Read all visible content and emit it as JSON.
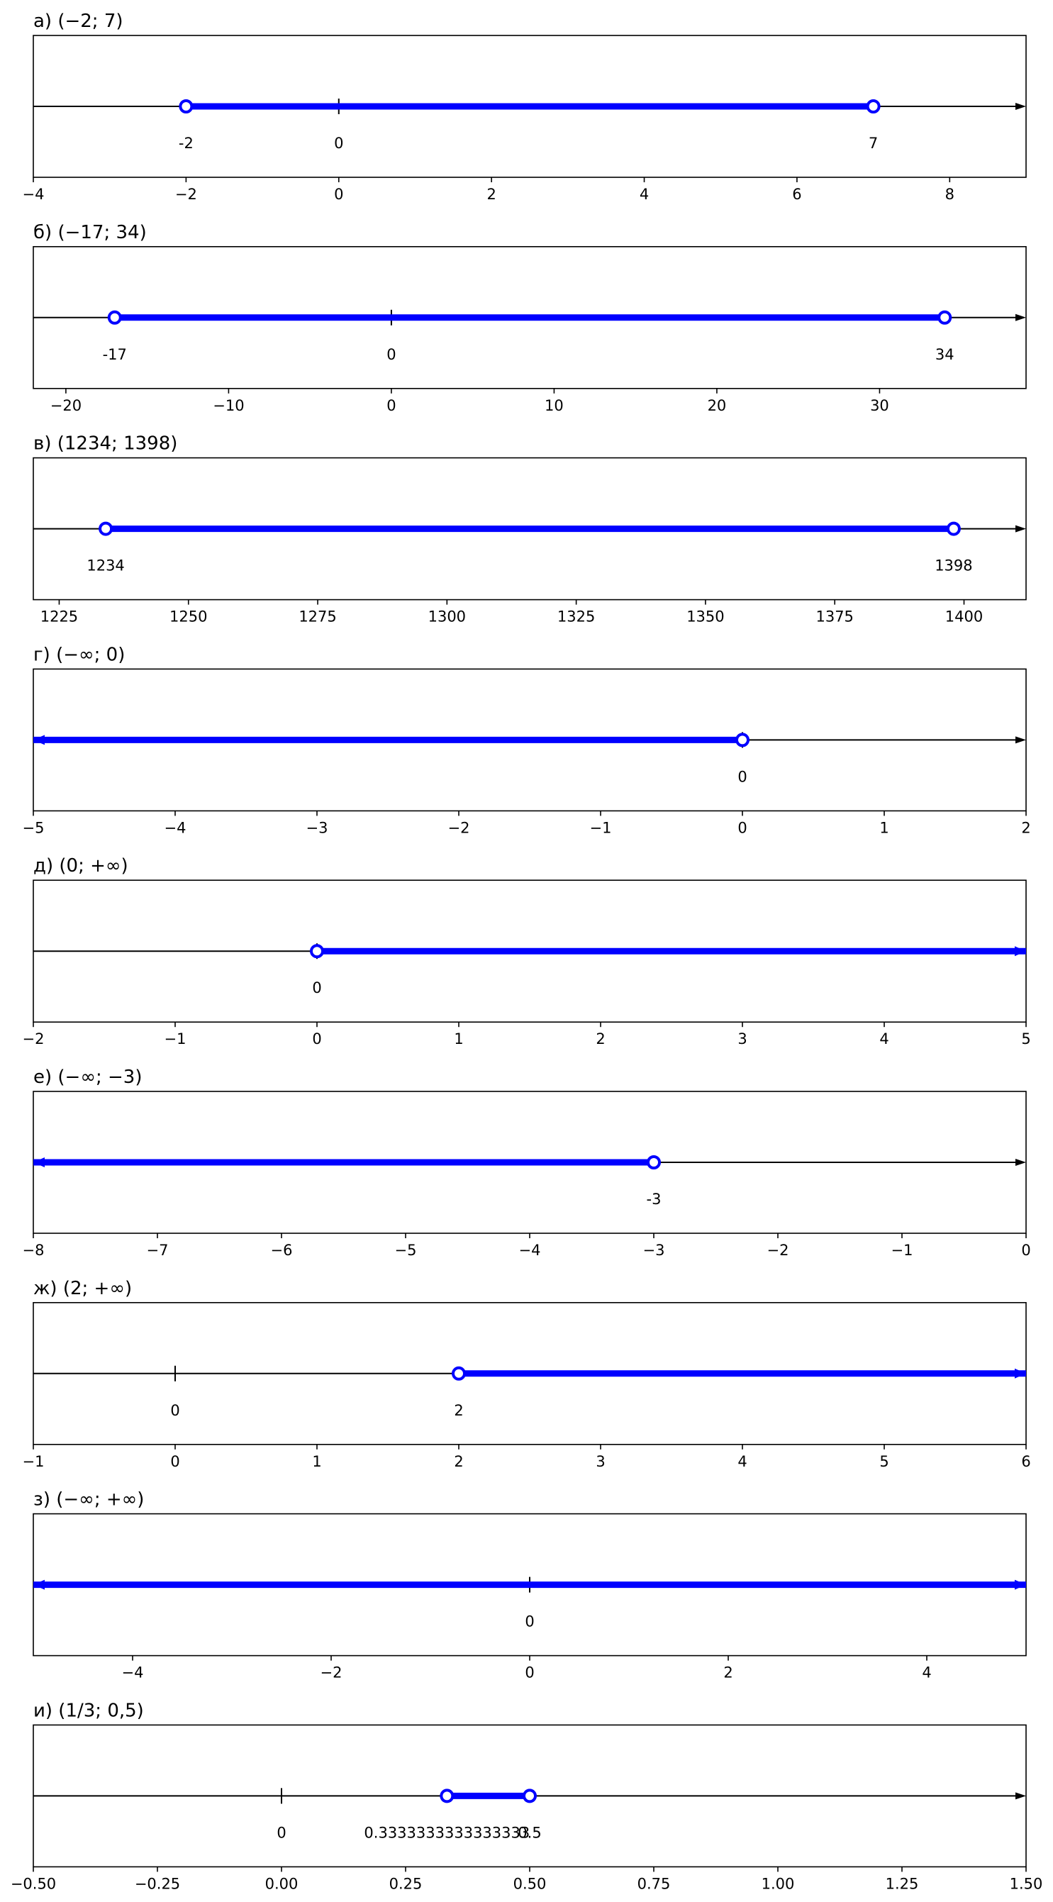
{
  "chart_data": [
    {
      "type": "number-line",
      "title": "а) (−2; 7)",
      "xlim": [
        -4,
        9
      ],
      "xticks": [
        {
          "v": -4,
          "label": "−4"
        },
        {
          "v": -2,
          "label": "−2"
        },
        {
          "v": 0,
          "label": "0"
        },
        {
          "v": 2,
          "label": "2"
        },
        {
          "v": 4,
          "label": "4"
        },
        {
          "v": 6,
          "label": "6"
        },
        {
          "v": 8,
          "label": "8"
        }
      ],
      "interval": {
        "from": -2,
        "to": 7,
        "from_inf": false,
        "to_inf": false
      },
      "point_labels": [
        {
          "v": -2,
          "label": "-2"
        },
        {
          "v": 0,
          "label": "0"
        },
        {
          "v": 7,
          "label": "7"
        }
      ],
      "zero_mark": true
    },
    {
      "type": "number-line",
      "title": "б) (−17; 34)",
      "xlim": [
        -22,
        39
      ],
      "xticks": [
        {
          "v": -20,
          "label": "−20"
        },
        {
          "v": -10,
          "label": "−10"
        },
        {
          "v": 0,
          "label": "0"
        },
        {
          "v": 10,
          "label": "10"
        },
        {
          "v": 20,
          "label": "20"
        },
        {
          "v": 30,
          "label": "30"
        }
      ],
      "interval": {
        "from": -17,
        "to": 34,
        "from_inf": false,
        "to_inf": false
      },
      "point_labels": [
        {
          "v": -17,
          "label": "-17"
        },
        {
          "v": 0,
          "label": "0"
        },
        {
          "v": 34,
          "label": "34"
        }
      ],
      "zero_mark": true
    },
    {
      "type": "number-line",
      "title": "в) (1234; 1398)",
      "xlim": [
        1220,
        1412
      ],
      "xticks": [
        {
          "v": 1225,
          "label": "1225"
        },
        {
          "v": 1250,
          "label": "1250"
        },
        {
          "v": 1275,
          "label": "1275"
        },
        {
          "v": 1300,
          "label": "1300"
        },
        {
          "v": 1325,
          "label": "1325"
        },
        {
          "v": 1350,
          "label": "1350"
        },
        {
          "v": 1375,
          "label": "1375"
        },
        {
          "v": 1400,
          "label": "1400"
        }
      ],
      "interval": {
        "from": 1234,
        "to": 1398,
        "from_inf": false,
        "to_inf": false
      },
      "point_labels": [
        {
          "v": 1234,
          "label": "1234"
        },
        {
          "v": 1398,
          "label": "1398"
        }
      ],
      "zero_mark": false
    },
    {
      "type": "number-line",
      "title": "г) (−∞; 0)",
      "xlim": [
        -5,
        2
      ],
      "xticks": [
        {
          "v": -5,
          "label": "−5"
        },
        {
          "v": -4,
          "label": "−4"
        },
        {
          "v": -3,
          "label": "−3"
        },
        {
          "v": -2,
          "label": "−2"
        },
        {
          "v": -1,
          "label": "−1"
        },
        {
          "v": 0,
          "label": "0"
        },
        {
          "v": 1,
          "label": "1"
        },
        {
          "v": 2,
          "label": "2"
        }
      ],
      "interval": {
        "from": null,
        "to": 0,
        "from_inf": true,
        "to_inf": false
      },
      "point_labels": [
        {
          "v": 0,
          "label": "0"
        }
      ],
      "zero_mark": true
    },
    {
      "type": "number-line",
      "title": "д) (0; +∞)",
      "xlim": [
        -2,
        5
      ],
      "xticks": [
        {
          "v": -2,
          "label": "−2"
        },
        {
          "v": -1,
          "label": "−1"
        },
        {
          "v": 0,
          "label": "0"
        },
        {
          "v": 1,
          "label": "1"
        },
        {
          "v": 2,
          "label": "2"
        },
        {
          "v": 3,
          "label": "3"
        },
        {
          "v": 4,
          "label": "4"
        },
        {
          "v": 5,
          "label": "5"
        }
      ],
      "interval": {
        "from": 0,
        "to": null,
        "from_inf": false,
        "to_inf": true
      },
      "point_labels": [
        {
          "v": 0,
          "label": "0"
        }
      ],
      "zero_mark": true
    },
    {
      "type": "number-line",
      "title": "е) (−∞; −3)",
      "xlim": [
        -8,
        0
      ],
      "xticks": [
        {
          "v": -8,
          "label": "−8"
        },
        {
          "v": -7,
          "label": "−7"
        },
        {
          "v": -6,
          "label": "−6"
        },
        {
          "v": -5,
          "label": "−5"
        },
        {
          "v": -4,
          "label": "−4"
        },
        {
          "v": -3,
          "label": "−3"
        },
        {
          "v": -2,
          "label": "−2"
        },
        {
          "v": -1,
          "label": "−1"
        },
        {
          "v": 0,
          "label": "0"
        }
      ],
      "interval": {
        "from": null,
        "to": -3,
        "from_inf": true,
        "to_inf": false
      },
      "point_labels": [
        {
          "v": -3,
          "label": "-3"
        }
      ],
      "zero_mark": false
    },
    {
      "type": "number-line",
      "title": "ж) (2; +∞)",
      "xlim": [
        -1,
        6
      ],
      "xticks": [
        {
          "v": -1,
          "label": "−1"
        },
        {
          "v": 0,
          "label": "0"
        },
        {
          "v": 1,
          "label": "1"
        },
        {
          "v": 2,
          "label": "2"
        },
        {
          "v": 3,
          "label": "3"
        },
        {
          "v": 4,
          "label": "4"
        },
        {
          "v": 5,
          "label": "5"
        },
        {
          "v": 6,
          "label": "6"
        }
      ],
      "interval": {
        "from": 2,
        "to": null,
        "from_inf": false,
        "to_inf": true
      },
      "point_labels": [
        {
          "v": 0,
          "label": "0"
        },
        {
          "v": 2,
          "label": "2"
        }
      ],
      "zero_mark": true
    },
    {
      "type": "number-line",
      "title": "з) (−∞; +∞)",
      "xlim": [
        -5,
        5
      ],
      "xticks": [
        {
          "v": -4,
          "label": "−4"
        },
        {
          "v": -2,
          "label": "−2"
        },
        {
          "v": 0,
          "label": "0"
        },
        {
          "v": 2,
          "label": "2"
        },
        {
          "v": 4,
          "label": "4"
        }
      ],
      "interval": {
        "from": null,
        "to": null,
        "from_inf": true,
        "to_inf": true
      },
      "point_labels": [
        {
          "v": 0,
          "label": "0"
        }
      ],
      "zero_mark": true
    },
    {
      "type": "number-line",
      "title": "и) (1/3; 0,5)",
      "xlim": [
        -0.5,
        1.5
      ],
      "xticks": [
        {
          "v": -0.5,
          "label": "−0.50"
        },
        {
          "v": -0.25,
          "label": "−0.25"
        },
        {
          "v": 0,
          "label": "0.00"
        },
        {
          "v": 0.25,
          "label": "0.25"
        },
        {
          "v": 0.5,
          "label": "0.50"
        },
        {
          "v": 0.75,
          "label": "0.75"
        },
        {
          "v": 1.0,
          "label": "1.00"
        },
        {
          "v": 1.25,
          "label": "1.25"
        },
        {
          "v": 1.5,
          "label": "1.50"
        }
      ],
      "interval": {
        "from": 0.3333333333333333,
        "to": 0.5,
        "from_inf": false,
        "to_inf": false
      },
      "point_labels": [
        {
          "v": 0,
          "label": "0"
        },
        {
          "v": 0.3333333333333333,
          "label": "0.3333333333333333"
        },
        {
          "v": 0.5,
          "label": "0.5"
        }
      ],
      "zero_mark": true
    }
  ],
  "colors": {
    "interval": "#0000ff",
    "axis": "#000000",
    "frame": "#000000",
    "background": "#ffffff"
  }
}
